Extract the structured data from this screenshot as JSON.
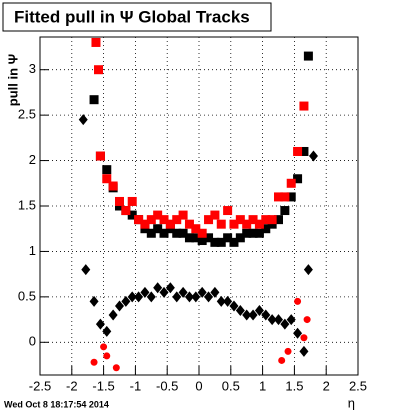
{
  "chart_data": {
    "type": "scatter",
    "title": "Fitted pull in Ψ   Global Tracks",
    "y_label": "pull in Ψ",
    "x_label": "η",
    "footer": "Wed Oct  8 18:17:54 2014",
    "xlim": [
      -2.5,
      2.5
    ],
    "ylim": [
      -0.36,
      3.36
    ],
    "xticks": [
      -2.5,
      -2,
      -1.5,
      -1,
      -0.5,
      0,
      0.5,
      1,
      1.5,
      2,
      2.5
    ],
    "yticks": [
      0,
      0.5,
      1,
      1.5,
      2,
      2.5,
      3
    ],
    "grid": true,
    "series": [
      {
        "color": "#000000",
        "marker": "square",
        "x": [
          -1.65,
          -1.55,
          -1.45,
          -1.35,
          -1.25,
          -1.15,
          -1.05,
          -0.95,
          -0.85,
          -0.75,
          -0.65,
          -0.55,
          -0.45,
          -0.35,
          -0.25,
          -0.15,
          -0.05,
          0.05,
          0.15,
          0.25,
          0.35,
          0.45,
          0.55,
          0.65,
          0.75,
          0.85,
          0.95,
          1.05,
          1.15,
          1.25,
          1.35,
          1.45,
          1.55,
          1.65,
          1.72
        ],
        "values": [
          2.67,
          2.05,
          1.9,
          1.7,
          1.5,
          1.45,
          1.4,
          1.35,
          1.25,
          1.2,
          1.25,
          1.2,
          1.25,
          1.2,
          1.2,
          1.15,
          1.15,
          1.12,
          1.15,
          1.1,
          1.1,
          1.15,
          1.1,
          1.15,
          1.2,
          1.2,
          1.2,
          1.25,
          1.3,
          1.35,
          1.45,
          1.6,
          1.8,
          2.1,
          3.15
        ]
      },
      {
        "color": "#ff0000",
        "marker": "square",
        "x": [
          -1.62,
          -1.58,
          -1.55,
          -1.45,
          -1.35,
          -1.25,
          -1.15,
          -1.05,
          -0.95,
          -0.85,
          -0.75,
          -0.65,
          -0.55,
          -0.45,
          -0.35,
          -0.25,
          -0.15,
          -0.05,
          0.05,
          0.15,
          0.25,
          0.35,
          0.45,
          0.55,
          0.65,
          0.75,
          0.85,
          0.95,
          1.05,
          1.15,
          1.25,
          1.35,
          1.45,
          1.55,
          1.65
        ],
        "values": [
          3.3,
          3.0,
          2.05,
          1.8,
          1.72,
          1.55,
          1.45,
          1.55,
          1.35,
          1.3,
          1.35,
          1.4,
          1.35,
          1.3,
          1.35,
          1.4,
          1.3,
          1.25,
          1.2,
          1.35,
          1.4,
          1.3,
          1.45,
          1.3,
          1.35,
          1.3,
          1.35,
          1.3,
          1.35,
          1.35,
          1.6,
          1.6,
          1.75,
          2.1,
          2.6
        ]
      },
      {
        "color": "#000000",
        "marker": "diamond",
        "x": [
          -1.82,
          -1.78,
          -1.65,
          -1.55,
          -1.45,
          -1.35,
          -1.25,
          -1.15,
          -1.05,
          -0.95,
          -0.85,
          -0.75,
          -0.65,
          -0.55,
          -0.45,
          -0.35,
          -0.25,
          -0.15,
          -0.05,
          0.05,
          0.15,
          0.25,
          0.35,
          0.45,
          0.55,
          0.65,
          0.75,
          0.85,
          0.95,
          1.05,
          1.15,
          1.25,
          1.35,
          1.45,
          1.55,
          1.65,
          1.72,
          1.8
        ],
        "values": [
          2.45,
          0.8,
          0.45,
          0.2,
          0.12,
          0.3,
          0.4,
          0.45,
          0.5,
          0.5,
          0.55,
          0.5,
          0.6,
          0.55,
          0.6,
          0.5,
          0.55,
          0.5,
          0.5,
          0.55,
          0.5,
          0.55,
          0.45,
          0.45,
          0.4,
          0.35,
          0.3,
          0.3,
          0.35,
          0.3,
          0.25,
          0.25,
          0.2,
          0.25,
          0.1,
          -0.1,
          0.8,
          2.05
        ]
      },
      {
        "color": "#ff0000",
        "marker": "circle",
        "x": [
          -1.65,
          -1.5,
          -1.45,
          -1.3,
          1.3,
          1.4,
          1.55,
          1.65,
          1.7
        ],
        "values": [
          -0.22,
          -0.05,
          -0.15,
          -0.28,
          -0.2,
          -0.1,
          0.45,
          0.05,
          0.25
        ]
      }
    ]
  }
}
